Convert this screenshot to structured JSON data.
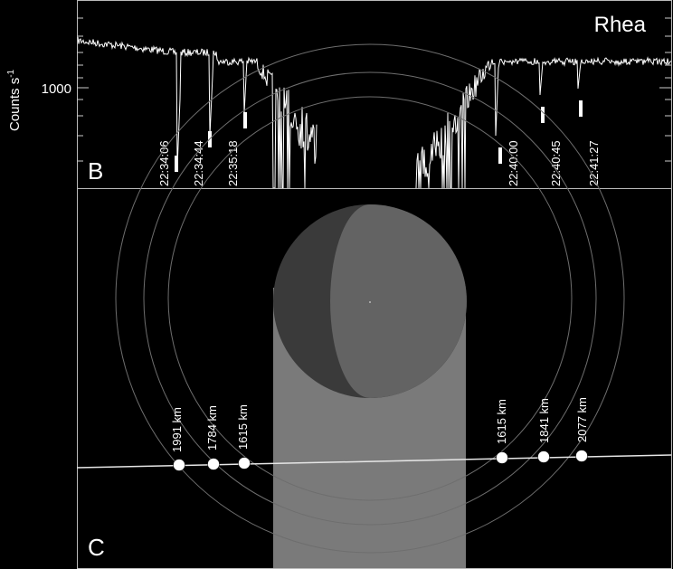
{
  "panel_b": {
    "letter": "B",
    "target": "Rhea",
    "ylabel": "Counts s",
    "ylabel_exp": "-1",
    "ytick": "1000",
    "events": [
      "22:34:06",
      "22:34:44",
      "22:35:18",
      "22:40:00",
      "22:40:45",
      "22:41:27"
    ]
  },
  "panel_c": {
    "letter": "C",
    "ingress": [
      "1991 km",
      "1784 km",
      "1615 km"
    ],
    "egress": [
      "1615 km",
      "1841 km",
      "2077 km"
    ]
  }
}
